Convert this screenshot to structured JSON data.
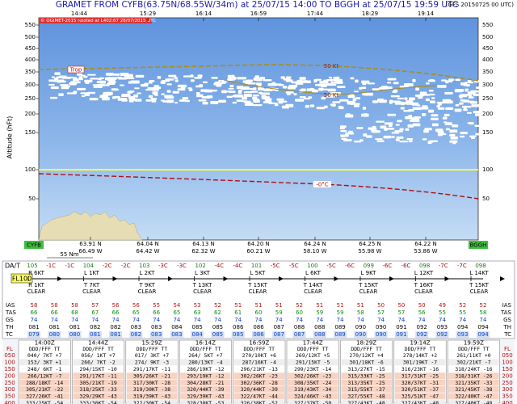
{
  "header": {
    "title": "GRAMET FROM CYFB(63.75N/68.55W/34m) at 25/07/15 14:00   TO   BGGH at 25/07/15 19:59 UTC",
    "source": "(GFS 20150725 00 UTC)",
    "copyright": "© OGIMET-2015 Rooted at L402:67 28/07/2015 UTC"
  },
  "plot": {
    "axis_title": "Altitude (hFt)",
    "times": [
      "14:44",
      "15:29",
      "16:14",
      "16:59",
      "17:44",
      "18:29",
      "19:14"
    ],
    "levels": [
      "550",
      "500",
      "450",
      "400",
      "350",
      "300",
      "250",
      "200",
      "150",
      "100",
      "50"
    ],
    "tropopause": "Trop",
    "wind_upper": "50 Kt",
    "wind_lower": "50 Kt",
    "freezing": "-0°C",
    "departure": "CYFB",
    "arrival": "BGGH",
    "scale": "55 Nm",
    "waypoints": [
      {
        "lat": "63.91 N",
        "lon": "66.49 W"
      },
      {
        "lat": "64.04 N",
        "lon": "64.42 W"
      },
      {
        "lat": "64.13 N",
        "lon": "62.32 W"
      },
      {
        "lat": "64.20 N",
        "lon": "60.21 W"
      },
      {
        "lat": "64.24 N",
        "lon": "58.10 W"
      },
      {
        "lat": "64.25 N",
        "lon": "55.98 W"
      },
      {
        "lat": "64.22 N",
        "lon": "53.86 W"
      }
    ]
  },
  "route": {
    "level": "FL100",
    "da_label": "DA/T",
    "da_row": [
      "105",
      "-1C",
      "-1C",
      "104",
      "-2C",
      "-2C",
      "103",
      "-3C",
      "-3C",
      "102",
      "-4C",
      "-4C",
      "101",
      "-5C",
      "-5C",
      "100",
      "-5C",
      "-6C",
      "099",
      "-6C",
      "-6C",
      "098",
      "-7C",
      "-7C",
      "098"
    ],
    "legs": [
      {
        "top": "R 6KT",
        "bottom": "R 1KT",
        "weather": "CLEAR"
      },
      {
        "top": "L 1KT",
        "bottom": "T 7KT",
        "weather": "CLEAR"
      },
      {
        "top": "L 2KT",
        "bottom": "T 9KT",
        "weather": "CLEAR"
      },
      {
        "top": "L 3KT",
        "bottom": "T 13KT",
        "weather": "CLEAR"
      },
      {
        "top": "L 5KT",
        "bottom": "T 15KT",
        "weather": "CLEAR"
      },
      {
        "top": "L 6KT",
        "bottom": "T 14KT",
        "weather": "CLEAR"
      },
      {
        "top": "L 9KT",
        "bottom": "T 15KT",
        "weather": "CLEAR"
      },
      {
        "top": "L 12KT",
        "bottom": "T 16KT",
        "weather": "CLEAR"
      },
      {
        "top": "L 14KT",
        "bottom": "T 15KT",
        "weather": "CLEAR"
      }
    ],
    "rows": [
      {
        "label": "IAS",
        "values": [
          "58",
          "58",
          "58",
          "57",
          "56",
          "56",
          "55",
          "54",
          "53",
          "52",
          "51",
          "51",
          "51",
          "52",
          "51",
          "51",
          "51",
          "50",
          "50",
          "50",
          "49",
          "52",
          "52"
        ]
      },
      {
        "label": "TAS",
        "values": [
          "66",
          "66",
          "68",
          "67",
          "66",
          "65",
          "66",
          "65",
          "63",
          "62",
          "61",
          "60",
          "59",
          "60",
          "59",
          "59",
          "58",
          "57",
          "57",
          "56",
          "55",
          "55",
          "58"
        ]
      },
      {
        "label": "GS",
        "values": [
          "74",
          "74",
          "74",
          "74",
          "74",
          "74",
          "74",
          "74",
          "74",
          "74",
          "74",
          "74",
          "74",
          "74",
          "74",
          "74",
          "74",
          "74",
          "74",
          "74",
          "74",
          "74",
          "74"
        ]
      },
      {
        "label": "TH",
        "values": [
          "081",
          "081",
          "081",
          "082",
          "082",
          "083",
          "083",
          "084",
          "085",
          "085",
          "086",
          "086",
          "087",
          "088",
          "088",
          "089",
          "090",
          "090",
          "091",
          "092",
          "093",
          "094",
          "094"
        ]
      },
      {
        "label": "TC",
        "values": [
          "079",
          "080",
          "080",
          "081",
          "081",
          "082",
          "083",
          "083",
          "084",
          "085",
          "085",
          "086",
          "087",
          "087",
          "088",
          "089",
          "090",
          "090",
          "091",
          "092",
          "092",
          "093",
          "094"
        ]
      }
    ]
  },
  "winds_table": {
    "fl_label": "FL",
    "levels": [
      "050",
      "100",
      "150",
      "200",
      "250",
      "300",
      "350",
      "400"
    ],
    "blocks": [
      {
        "time": "14:00Z",
        "header": "DDD/FFF TT",
        "cells": [
          "040/ 7KT +7",
          "153/ 3KT +1",
          "248/ 6KT -1",
          "266/12KT -7",
          "288/18KT -14",
          "305/21KT -22",
          "327/26KT -41",
          "333/25KT -54"
        ]
      },
      {
        "time": "14:44Z",
        "header": "DDD/FFF TT",
        "cells": [
          "056/ 1KT +7",
          "266/ 7KT -2",
          "294/15KT -10",
          "291/17KT -11",
          "305/21KT -19",
          "318/25KT -33",
          "329/29KT -43",
          "333/30KT -54"
        ]
      },
      {
        "time": "15:29Z",
        "header": "DDD/FFF TT",
        "cells": [
          "017/ 3KT +7",
          "274/ 9KT -3",
          "291/17KT -11",
          "305/26KT -21",
          "317/30KT -28",
          "319/30KT -38",
          "319/39KT -43",
          "322/30KT -54"
        ]
      },
      {
        "time": "16:14Z",
        "header": "DDD/FFF TT",
        "cells": [
          "264/ 5KT +7",
          "280/13KT -4",
          "286/19KT -12",
          "293/19KT -12",
          "304/28KT -21",
          "320/44KT -39",
          "329/39KT -43",
          "328/38KT -53"
        ]
      },
      {
        "time": "16:59Z",
        "header": "DDD/FFF TT",
        "cells": [
          "270/10KT +6",
          "287/16KT -4",
          "296/21KT -13",
          "302/26KT -23",
          "302/36KT -28",
          "320/44KT -39",
          "322/47KT -44",
          "326/38KT -52"
        ]
      },
      {
        "time": "17:44Z",
        "header": "DDD/FFF TT",
        "cells": [
          "269/12KT +5",
          "291/15KT -5",
          "299/23KT -14",
          "302/26KT -23",
          "308/35KT -24",
          "319/43KT -34",
          "324/46KT -43",
          "327/37KT -50"
        ]
      },
      {
        "time": "18:29Z",
        "header": "DDD/FFF TT",
        "cells": [
          "270/12KT +4",
          "301/18KT -6",
          "313/27KT -15",
          "315/33KT -25",
          "313/35KT -25",
          "315/55KT -37",
          "327/55KT -48",
          "327/43KT -48"
        ]
      },
      {
        "time": "19:14Z",
        "header": "DDD/FFF TT",
        "cells": [
          "278/14KT +2",
          "301/19KT -7",
          "316/23KT -16",
          "317/31KT -25",
          "320/37KT -31",
          "320/51KT -37",
          "325/51KT -47",
          "327/43KT -48"
        ]
      },
      {
        "time": "19:59Z",
        "header": "DDD/FFF TT",
        "cells": [
          "261/11KT +0",
          "302/21KT -7",
          "318/24KT -16",
          "318/31KT -26",
          "321/35KT -33",
          "321/45KT -38",
          "322/40KT -47",
          "327/40KT -48"
        ]
      }
    ]
  }
}
